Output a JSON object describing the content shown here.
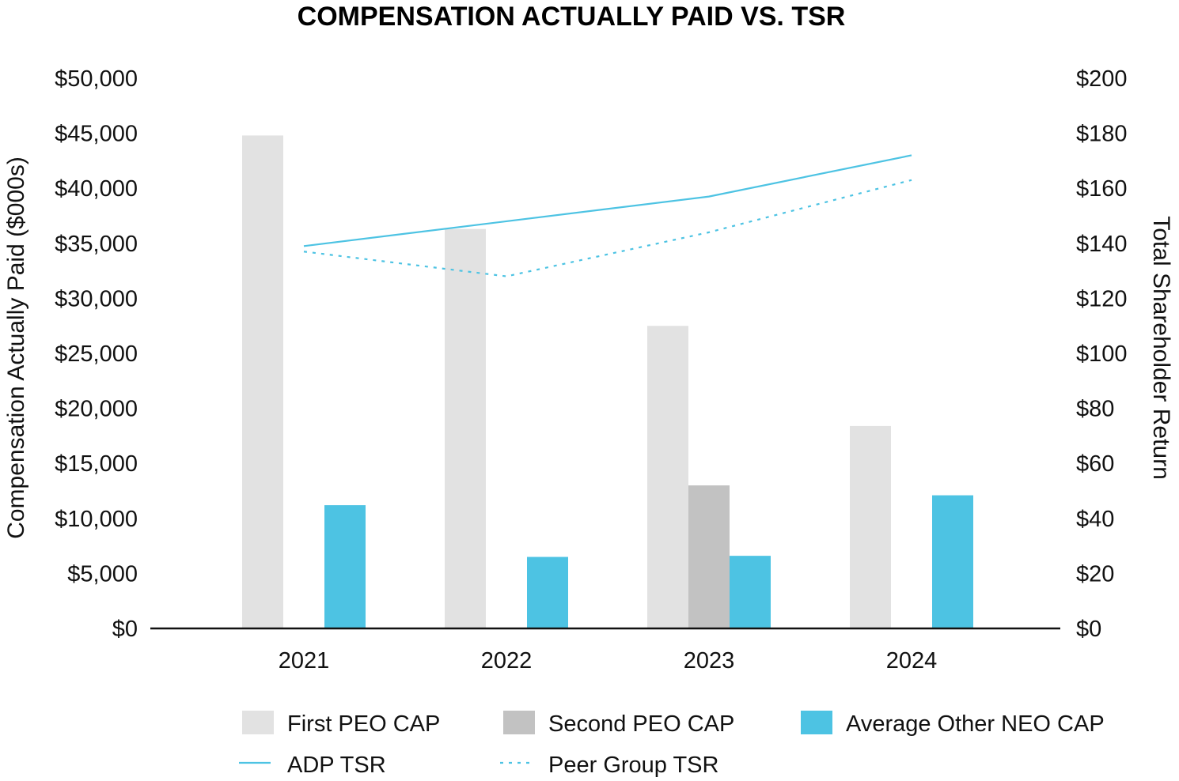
{
  "chart_data": {
    "type": "bar",
    "title": "COMPENSATION ACTUALLY PAID VS. TSR",
    "categories": [
      "2021",
      "2022",
      "2023",
      "2024"
    ],
    "ylabel": "Compensation Actually Paid ($000s)",
    "y2label": "Total Shareholder Return",
    "ylim": [
      0,
      50000
    ],
    "y2lim": [
      0,
      200
    ],
    "yticks": [
      "$0",
      "$5,000",
      "$10,000",
      "$15,000",
      "$20,000",
      "$25,000",
      "$30,000",
      "$35,000",
      "$40,000",
      "$45,000",
      "$50,000"
    ],
    "y2ticks": [
      "$0",
      "$20",
      "$40",
      "$60",
      "$80",
      "$100",
      "$120",
      "$140",
      "$160",
      "$180",
      "$200"
    ],
    "bar_series": [
      {
        "name": "First PEO CAP",
        "color": "#e2e2e2",
        "values": [
          44800,
          36300,
          27500,
          18400
        ]
      },
      {
        "name": "Second PEO CAP",
        "color": "#c2c2c2",
        "values": [
          null,
          null,
          13000,
          null
        ]
      },
      {
        "name": "Average Other NEO CAP",
        "color": "#4dc3e3",
        "values": [
          11200,
          6500,
          6600,
          12100
        ]
      }
    ],
    "line_series": [
      {
        "name": "ADP TSR",
        "color": "#4dc3e3",
        "style": "solid",
        "axis": "right",
        "values": [
          139,
          148,
          157,
          172
        ]
      },
      {
        "name": "Peer Group TSR",
        "color": "#4dc3e3",
        "style": "dotted",
        "axis": "right",
        "values": [
          137,
          128,
          144,
          163
        ]
      }
    ],
    "legend": {
      "placement": "bottom"
    }
  }
}
